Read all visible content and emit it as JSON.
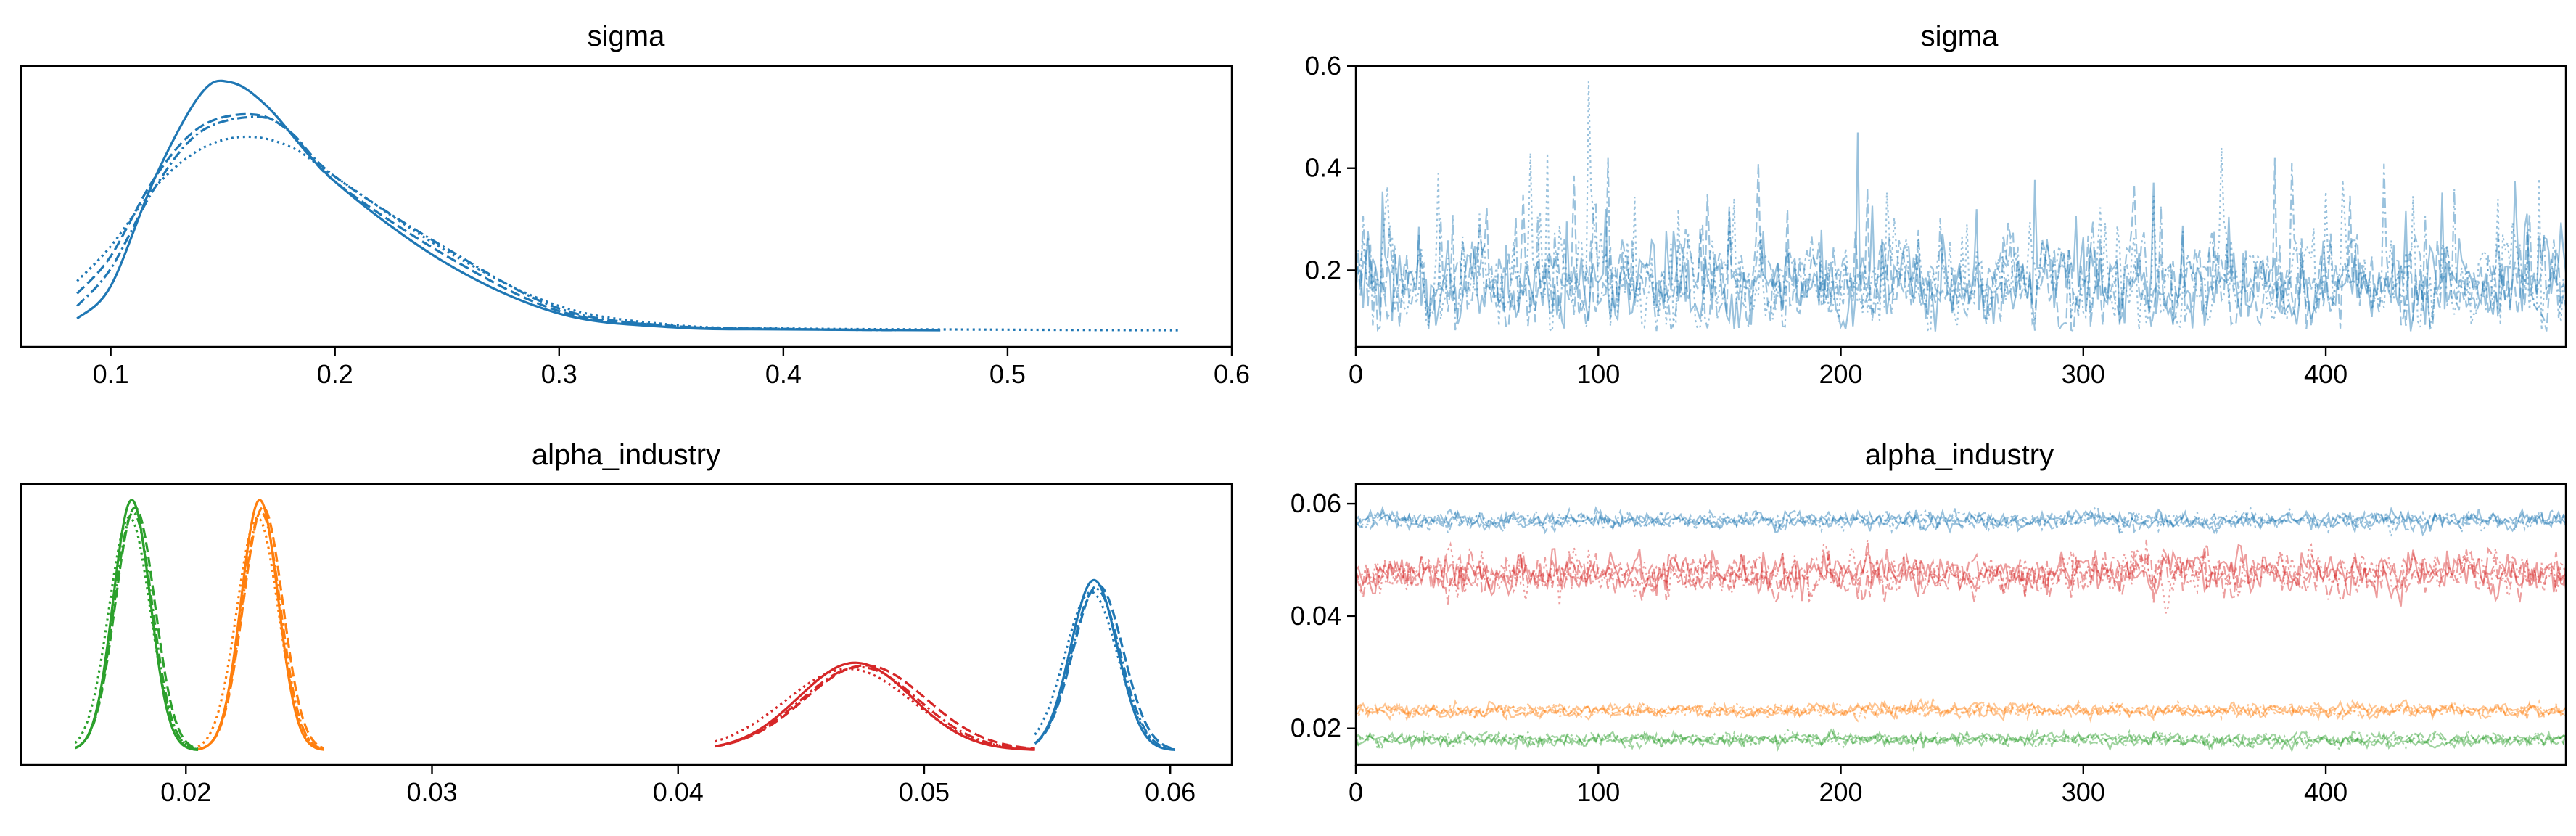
{
  "chart_data": [
    {
      "panel": "kde",
      "type": "line",
      "title": "sigma",
      "xlim": [
        0.06,
        0.6
      ],
      "xticks": [
        0.1,
        0.2,
        0.3,
        0.4,
        0.5,
        0.6
      ],
      "xtick_labels": [
        "0.1",
        "0.2",
        "0.3",
        "0.4",
        "0.5",
        "0.6"
      ],
      "yticks_visible": false,
      "grid": false,
      "series": [
        {
          "chain": 0,
          "linestyle": "solid",
          "color": "#1f77b4",
          "x": [
            0.085,
            0.1,
            0.12,
            0.14,
            0.153,
            0.17,
            0.2,
            0.25,
            0.3,
            0.35,
            0.4,
            0.47
          ],
          "y": [
            0.05,
            0.18,
            0.62,
            0.95,
            1.0,
            0.9,
            0.6,
            0.27,
            0.07,
            0.015,
            0.006,
            0.003
          ]
        },
        {
          "chain": 1,
          "linestyle": "dashed",
          "color": "#1f77b4",
          "x": [
            0.085,
            0.1,
            0.12,
            0.14,
            0.163,
            0.18,
            0.2,
            0.25,
            0.3,
            0.35,
            0.4,
            0.45
          ],
          "y": [
            0.15,
            0.3,
            0.62,
            0.82,
            0.87,
            0.8,
            0.6,
            0.3,
            0.08,
            0.02,
            0.008,
            0.004
          ]
        },
        {
          "chain": 2,
          "linestyle": "dotted",
          "color": "#1f77b4",
          "x": [
            0.085,
            0.1,
            0.12,
            0.14,
            0.16,
            0.18,
            0.2,
            0.25,
            0.3,
            0.35,
            0.4,
            0.5,
            0.576
          ],
          "y": [
            0.2,
            0.34,
            0.58,
            0.73,
            0.78,
            0.74,
            0.62,
            0.32,
            0.1,
            0.025,
            0.01,
            0.005,
            0.003
          ]
        },
        {
          "chain": 3,
          "linestyle": "dashdot",
          "color": "#1f77b4",
          "x": [
            0.085,
            0.1,
            0.12,
            0.14,
            0.165,
            0.18,
            0.2,
            0.25,
            0.3,
            0.35,
            0.4,
            0.45
          ],
          "y": [
            0.1,
            0.25,
            0.58,
            0.8,
            0.86,
            0.8,
            0.62,
            0.33,
            0.09,
            0.02,
            0.008,
            0.003
          ]
        }
      ]
    },
    {
      "panel": "trace",
      "type": "line",
      "title": "sigma",
      "xlim": [
        0,
        499
      ],
      "ylim": [
        0.05,
        0.6
      ],
      "xticks": [
        0,
        100,
        200,
        300,
        400
      ],
      "xtick_labels": [
        "0",
        "100",
        "200",
        "300",
        "400"
      ],
      "yticks": [
        0.2,
        0.4,
        0.6
      ],
      "ytick_labels": [
        "0.2",
        "0.4",
        "0.6"
      ],
      "grid": false,
      "n_draws": 500,
      "series": [
        {
          "chain": 0,
          "linestyle": "solid",
          "color": "#1f77b4",
          "mean": 0.17,
          "spread": 0.05,
          "min": 0.08,
          "peaks": [
            {
              "x": 207,
              "y": 0.47
            },
            {
              "x": 103,
              "y": 0.32
            }
          ]
        },
        {
          "chain": 1,
          "linestyle": "dashed",
          "color": "#1f77b4",
          "mean": 0.17,
          "spread": 0.05,
          "min": 0.08,
          "peaks": [
            {
              "x": 211,
              "y": 0.36
            },
            {
              "x": 379,
              "y": 0.42
            }
          ]
        },
        {
          "chain": 2,
          "linestyle": "dotted",
          "color": "#1f77b4",
          "mean": 0.18,
          "spread": 0.055,
          "min": 0.08,
          "peaks": [
            {
              "x": 96,
              "y": 0.57
            },
            {
              "x": 357,
              "y": 0.44
            },
            {
              "x": 34,
              "y": 0.39
            },
            {
              "x": 79,
              "y": 0.43
            },
            {
              "x": 488,
              "y": 0.38
            }
          ]
        },
        {
          "chain": 3,
          "linestyle": "dashdot",
          "color": "#1f77b4",
          "mean": 0.17,
          "spread": 0.05,
          "min": 0.08,
          "peaks": [
            {
              "x": 104,
              "y": 0.42
            },
            {
              "x": 386,
              "y": 0.41
            },
            {
              "x": 453,
              "y": 0.36
            }
          ]
        }
      ]
    },
    {
      "panel": "kde",
      "type": "line",
      "title": "alpha_industry",
      "xlim": [
        0.0133,
        0.0625
      ],
      "xticks": [
        0.02,
        0.03,
        0.04,
        0.05,
        0.06
      ],
      "xtick_labels": [
        "0.02",
        "0.03",
        "0.04",
        "0.05",
        "0.06"
      ],
      "yticks_visible": false,
      "grid": false,
      "groups": [
        {
          "color": "#2ca02c",
          "center": 0.0178,
          "sd": 0.00075,
          "range": [
            0.0155,
            0.0205
          ],
          "peak": 1.0
        },
        {
          "color": "#ff7f0e",
          "center": 0.023,
          "sd": 0.00075,
          "range": [
            0.0205,
            0.0256
          ],
          "peak": 1.0
        },
        {
          "color": "#d62728",
          "center": 0.0472,
          "sd": 0.0023,
          "range": [
            0.0415,
            0.0545
          ],
          "peak": 0.35
        },
        {
          "color": "#1f77b4",
          "center": 0.0569,
          "sd": 0.00095,
          "range": [
            0.0545,
            0.0602
          ],
          "peak": 0.68
        }
      ]
    },
    {
      "panel": "trace",
      "type": "line",
      "title": "alpha_industry",
      "xlim": [
        0,
        499
      ],
      "ylim": [
        0.0135,
        0.0635
      ],
      "xticks": [
        0,
        100,
        200,
        300,
        400
      ],
      "xtick_labels": [
        "0",
        "100",
        "200",
        "300",
        "400"
      ],
      "yticks": [
        0.02,
        0.04,
        0.06
      ],
      "ytick_labels": [
        "0.02",
        "0.04",
        "0.06"
      ],
      "grid": false,
      "n_draws": 500,
      "groups": [
        {
          "color": "#1f77b4",
          "mean": 0.057,
          "spread": 0.0009
        },
        {
          "color": "#d62728",
          "mean": 0.0475,
          "spread": 0.0022
        },
        {
          "color": "#ff7f0e",
          "mean": 0.0232,
          "spread": 0.0007
        },
        {
          "color": "#2ca02c",
          "mean": 0.018,
          "spread": 0.0007
        }
      ]
    }
  ]
}
